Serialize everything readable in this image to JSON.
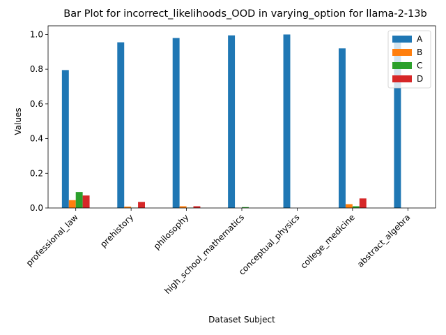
{
  "chart_data": {
    "type": "bar",
    "title": "Bar Plot for incorrect_likelihoods_OOD in varying_option for llama-2-13b",
    "xlabel": "Dataset Subject",
    "ylabel": "Values",
    "ylim": [
      0,
      1.05
    ],
    "yticks": [
      "0.0",
      "0.2",
      "0.4",
      "0.6",
      "0.8",
      "1.0"
    ],
    "grid": false,
    "legend_position": "top-right",
    "categories": [
      "professional_law",
      "prehistory",
      "philosophy",
      "high_school_mathematics",
      "conceptual_physics",
      "college_medicine",
      "abstract_algebra"
    ],
    "series": [
      {
        "name": "A",
        "color": "#1f77b4",
        "values": [
          0.795,
          0.955,
          0.98,
          0.995,
          1.0,
          0.92,
          0.96
        ]
      },
      {
        "name": "B",
        "color": "#ff7f0e",
        "values": [
          0.045,
          0.008,
          0.01,
          0.0,
          0.0,
          0.022,
          0.0
        ]
      },
      {
        "name": "C",
        "color": "#2ca02c",
        "values": [
          0.092,
          0.002,
          0.002,
          0.005,
          0.0,
          0.01,
          0.0
        ]
      },
      {
        "name": "D",
        "color": "#d62728",
        "values": [
          0.072,
          0.035,
          0.01,
          0.0,
          0.0,
          0.055,
          0.0
        ]
      }
    ]
  }
}
